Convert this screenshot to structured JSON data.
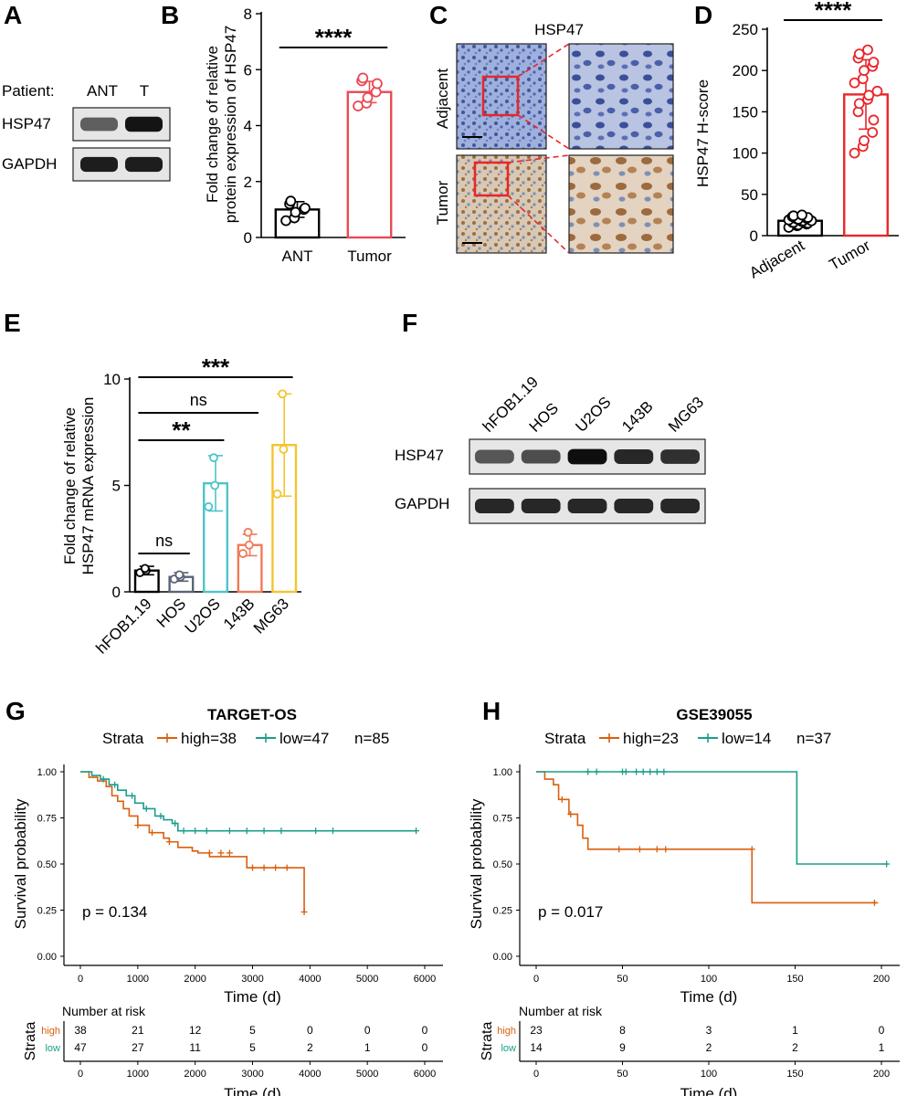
{
  "colors": {
    "black": "#000000",
    "slate": "#5a6478",
    "cyan": "#4fc3c9",
    "salmon": "#f07a5a",
    "gold": "#f4c430",
    "red": "#e8262a",
    "pink_red": "#ea4a55",
    "high": "#d95f0e",
    "low": "#1a9e8a",
    "he_blue": "#5b74b9",
    "ihc_brown": "#b8946b"
  },
  "panels": {
    "A": {
      "letter": "A",
      "patient_label": "Patient:",
      "lanes": [
        "ANT",
        "T"
      ],
      "rows": [
        {
          "label": "HSP47",
          "band_intensity": [
            0.55,
            0.95
          ]
        },
        {
          "label": "GAPDH",
          "band_intensity": [
            0.9,
            0.9
          ]
        }
      ]
    },
    "B": {
      "letter": "B",
      "chart_data": {
        "type": "bar",
        "categories": [
          "ANT",
          "Tumor"
        ],
        "values": [
          1.0,
          5.2
        ],
        "error": [
          0.28,
          0.38
        ],
        "points": [
          [
            0.6,
            0.7,
            0.9,
            1.0,
            1.05,
            1.2,
            1.3
          ],
          [
            4.7,
            4.8,
            5.0,
            5.2,
            5.5,
            5.6,
            5.7
          ]
        ],
        "title": "",
        "xlabel": "",
        "ylabel": "Fold change of relative protein expression of HSP47",
        "ylim": [
          0,
          8
        ],
        "yticks": [
          0,
          2,
          4,
          6,
          8
        ],
        "significance": [
          {
            "from": "ANT",
            "to": "Tumor",
            "label": "****"
          }
        ]
      }
    },
    "C": {
      "letter": "C",
      "title": "HSP47",
      "rows": [
        "Adjacent",
        "Tumor"
      ]
    },
    "D": {
      "letter": "D",
      "chart_data": {
        "type": "bar",
        "categories": [
          "Adjacent",
          "Tumor"
        ],
        "values": [
          18,
          171
        ],
        "error": [
          5,
          42
        ],
        "points": [
          [
            10,
            12,
            13,
            14,
            15,
            16,
            16,
            17,
            18,
            18,
            19,
            20,
            20,
            21,
            22,
            23,
            24,
            25
          ],
          [
            100,
            108,
            115,
            125,
            140,
            150,
            160,
            165,
            170,
            175,
            185,
            190,
            200,
            205,
            210,
            215,
            220,
            225
          ]
        ],
        "title": "",
        "xlabel": "",
        "ylabel": "HSP47 H-score",
        "ylim": [
          0,
          250
        ],
        "yticks": [
          0,
          50,
          100,
          150,
          200,
          250
        ],
        "significance": [
          {
            "from": "Adjacent",
            "to": "Tumor",
            "label": "****"
          }
        ]
      }
    },
    "E": {
      "letter": "E",
      "chart_data": {
        "type": "bar",
        "categories": [
          "hFOB1.19",
          "HOS",
          "U2OS",
          "143B",
          "MG63"
        ],
        "values": [
          1.0,
          0.7,
          5.1,
          2.2,
          6.9
        ],
        "error": [
          0.2,
          0.2,
          1.3,
          0.5,
          2.4
        ],
        "points": [
          [
            0.9,
            1.0,
            1.1
          ],
          [
            0.6,
            0.7,
            0.8
          ],
          [
            4.0,
            5.0,
            6.3
          ],
          [
            1.8,
            2.2,
            2.8
          ],
          [
            4.6,
            6.7,
            9.3
          ]
        ],
        "title": "",
        "xlabel": "",
        "ylabel": "Fold change of relative HSP47 mRNA expression",
        "ylim": [
          0,
          10
        ],
        "yticks": [
          0,
          5,
          10
        ],
        "significance": [
          {
            "from": "hFOB1.19",
            "to": "HOS",
            "label": "ns"
          },
          {
            "from": "hFOB1.19",
            "to": "U2OS",
            "label": "**"
          },
          {
            "from": "hFOB1.19",
            "to": "143B",
            "label": "ns"
          },
          {
            "from": "hFOB1.19",
            "to": "MG63",
            "label": "***"
          }
        ]
      }
    },
    "F": {
      "letter": "F",
      "lanes": [
        "hFOB1.19",
        "HOS",
        "U2OS",
        "143B",
        "MG63"
      ],
      "rows": [
        {
          "label": "HSP47",
          "band_intensity": [
            0.6,
            0.65,
            0.98,
            0.85,
            0.8
          ]
        },
        {
          "label": "GAPDH",
          "band_intensity": [
            0.85,
            0.85,
            0.85,
            0.85,
            0.85
          ]
        }
      ]
    },
    "G": {
      "letter": "G",
      "title": "TARGET-OS",
      "legend": {
        "title": "Strata",
        "high": "high=38",
        "low": "low=47",
        "n": "n=85"
      },
      "pvalue": "p = 0.134",
      "risk_title": "Number at risk",
      "risk_axis_label": "Strata",
      "risk_rows": [
        {
          "label": "high",
          "values": [
            "38",
            "21",
            "12",
            "5",
            "0",
            "0",
            "0"
          ]
        },
        {
          "label": "low",
          "values": [
            "47",
            "27",
            "11",
            "5",
            "2",
            "1",
            "0"
          ]
        }
      ],
      "chart_data": {
        "type": "line",
        "subtype": "kaplan-meier",
        "xlabel": "Time (d)",
        "ylabel": "Survival probability",
        "xlim": [
          0,
          6000
        ],
        "ylim": [
          0,
          1
        ],
        "xticks": [
          0,
          1000,
          2000,
          3000,
          4000,
          5000,
          6000
        ],
        "yticks": [
          "0.00",
          "0.25",
          "0.50",
          "0.75",
          "1.00"
        ],
        "series": [
          {
            "name": "high",
            "x": [
              0,
              150,
              300,
              450,
              550,
              650,
              750,
              850,
              1000,
              1200,
              1450,
              1550,
              1700,
              1950,
              2050,
              2250,
              2900,
              3900
            ],
            "y": [
              1.0,
              0.97,
              0.95,
              0.92,
              0.87,
              0.84,
              0.8,
              0.76,
              0.71,
              0.67,
              0.64,
              0.62,
              0.59,
              0.57,
              0.56,
              0.54,
              0.48,
              0.24
            ],
            "censor_x": [
              1000,
              1250,
              1550,
              2250,
              2450,
              2600,
              3000,
              3200,
              3400,
              3600,
              3900
            ],
            "censor_y": [
              0.71,
              0.67,
              0.62,
              0.56,
              0.56,
              0.56,
              0.48,
              0.48,
              0.48,
              0.48,
              0.24
            ]
          },
          {
            "name": "low",
            "x": [
              0,
              200,
              350,
              500,
              650,
              800,
              950,
              1100,
              1300,
              1450,
              1600,
              1700,
              5850
            ],
            "y": [
              1.0,
              0.98,
              0.96,
              0.93,
              0.9,
              0.87,
              0.83,
              0.8,
              0.76,
              0.74,
              0.72,
              0.68,
              0.68
            ],
            "censor_x": [
              400,
              600,
              900,
              1150,
              1400,
              1650,
              1800,
              2000,
              2200,
              2600,
              2900,
              3200,
              3500,
              4100,
              4400,
              5850
            ],
            "censor_y": [
              0.96,
              0.93,
              0.87,
              0.8,
              0.76,
              0.72,
              0.68,
              0.68,
              0.68,
              0.68,
              0.68,
              0.68,
              0.68,
              0.68,
              0.68,
              0.68
            ]
          }
        ]
      }
    },
    "H": {
      "letter": "H",
      "title": "GSE39055",
      "legend": {
        "title": "Strata",
        "high": "high=23",
        "low": "low=14",
        "n": "n=37"
      },
      "pvalue": "p = 0.017",
      "risk_title": "Number at risk",
      "risk_axis_label": "Strata",
      "risk_rows": [
        {
          "label": "high",
          "values": [
            "23",
            "8",
            "3",
            "1",
            "0"
          ]
        },
        {
          "label": "low",
          "values": [
            "14",
            "9",
            "2",
            "2",
            "1"
          ]
        }
      ],
      "chart_data": {
        "type": "line",
        "subtype": "kaplan-meier",
        "xlabel": "Time (d)",
        "ylabel": "Survival probability",
        "xlim": [
          0,
          200
        ],
        "ylim": [
          0,
          1
        ],
        "xticks": [
          0,
          50,
          100,
          150,
          200
        ],
        "yticks": [
          "0.00",
          "0.25",
          "0.50",
          "0.75",
          "1.00"
        ],
        "series": [
          {
            "name": "high",
            "x": [
              0,
              5,
              10,
              13,
              19,
              24,
              27,
              30,
              125,
              198
            ],
            "y": [
              1.0,
              0.96,
              0.93,
              0.85,
              0.77,
              0.71,
              0.64,
              0.58,
              0.29,
              0.29
            ],
            "censor_x": [
              15,
              20,
              48,
              60,
              70,
              75,
              125,
              196
            ],
            "censor_y": [
              0.85,
              0.77,
              0.58,
              0.58,
              0.58,
              0.58,
              0.58,
              0.29
            ]
          },
          {
            "name": "low",
            "x": [
              0,
              151,
              203
            ],
            "y": [
              1.0,
              0.5,
              0.5
            ],
            "censor_x": [
              30,
              35,
              50,
              52,
              58,
              62,
              66,
              70,
              74,
              203
            ],
            "censor_y": [
              1,
              1,
              1,
              1,
              1,
              1,
              1,
              1,
              1,
              0.5
            ]
          }
        ]
      }
    }
  }
}
